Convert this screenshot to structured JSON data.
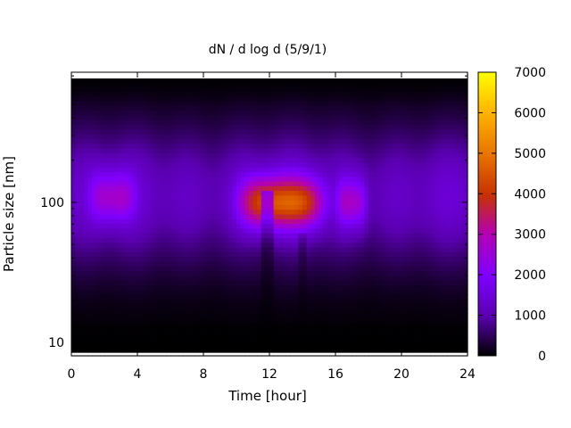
{
  "chart_data": {
    "type": "heatmap",
    "title": "dN / d log d (5/9/1)",
    "xlabel": "Time [hour]",
    "ylabel": "Particle size [nm]",
    "x_range": [
      0,
      24
    ],
    "y_range": [
      8,
      850
    ],
    "y_scale": "log",
    "x_ticks": [
      0,
      4,
      8,
      12,
      16,
      20,
      24
    ],
    "y_ticks": [
      10,
      100
    ],
    "colorbar": {
      "range": [
        0,
        7000
      ],
      "ticks": [
        0,
        1000,
        2000,
        3000,
        4000,
        5000,
        6000,
        7000
      ],
      "colormap": [
        "#000000",
        "#5a00b0",
        "#7f00ff",
        "#b400b4",
        "#c83200",
        "#e87400",
        "#ffb400",
        "#ffff00"
      ]
    },
    "grid": false,
    "legend": "colorbar-right",
    "background_level": 1500,
    "features": [
      {
        "name": "main_mode",
        "time_start": 10,
        "time_end": 15.5,
        "center_nm": 100,
        "peak": 4200
      },
      {
        "name": "early_mode",
        "time_start": 1,
        "time_end": 4,
        "center_nm": 110,
        "peak": 2300
      },
      {
        "name": "late_mode",
        "time_start": 16,
        "time_end": 18,
        "center_nm": 100,
        "peak": 2400
      }
    ]
  }
}
